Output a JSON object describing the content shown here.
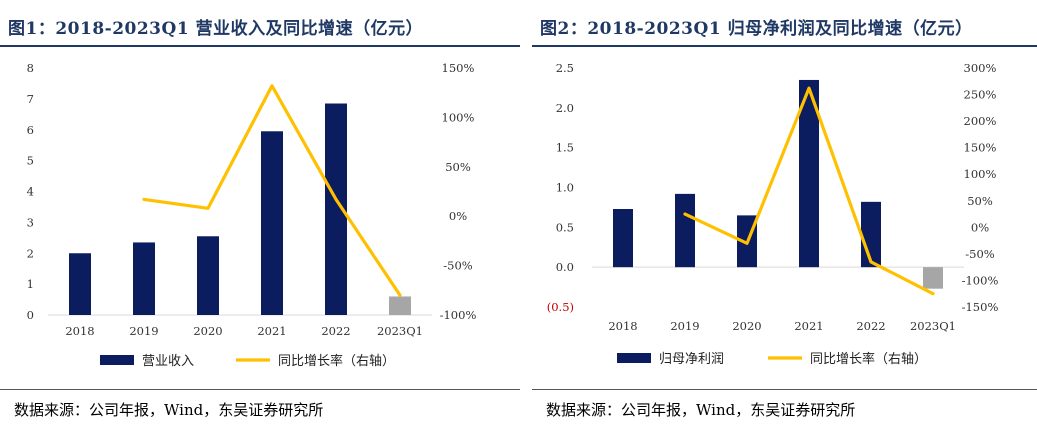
{
  "colors": {
    "bar": "#0b1d5e",
    "bar_estimate": "#a6a6a6",
    "line": "#ffc000",
    "title": "#1f3864",
    "negative_label": "#c00000"
  },
  "figures": [
    {
      "title": "图1：2018-2023Q1 营业收入及同比增速（亿元）",
      "source": "数据来源：公司年报，Wind，东吴证券研究所"
    },
    {
      "title": "图2：2018-2023Q1 归母净利润及同比增速（亿元）",
      "source": "数据来源：公司年报，Wind，东吴证券研究所"
    }
  ],
  "chart_data": [
    {
      "type": "bar",
      "categories": [
        "2018",
        "2019",
        "2020",
        "2021",
        "2022",
        "2023Q1"
      ],
      "series": [
        {
          "name": "营业收入",
          "type": "bar",
          "axis": "left",
          "values": [
            2.0,
            2.35,
            2.55,
            5.95,
            6.85,
            0.6
          ]
        },
        {
          "name": "同比增长率（右轴）",
          "type": "line",
          "axis": "right",
          "values": [
            null,
            0.17,
            0.08,
            1.32,
            0.17,
            -0.8
          ]
        }
      ],
      "left_ticks": [
        "0",
        "1",
        "2",
        "3",
        "4",
        "5",
        "6",
        "7",
        "8"
      ],
      "right_ticks": [
        "-100%",
        "-50%",
        "0%",
        "50%",
        "100%",
        "150%"
      ],
      "ylim_left": [
        0,
        8
      ],
      "ylim_right": [
        -1.0,
        1.5
      ],
      "legend": "bottom",
      "grid": false
    },
    {
      "type": "bar",
      "categories": [
        "2018",
        "2019",
        "2020",
        "2021",
        "2022",
        "2023Q1"
      ],
      "series": [
        {
          "name": "归母净利润",
          "type": "bar",
          "axis": "left",
          "values": [
            0.73,
            0.92,
            0.65,
            2.35,
            0.82,
            -0.27
          ]
        },
        {
          "name": "同比增长率（右轴）",
          "type": "line",
          "axis": "right",
          "values": [
            null,
            0.25,
            -0.3,
            2.62,
            -0.65,
            -1.25
          ]
        }
      ],
      "left_ticks": [
        "(0.5)",
        "0.0",
        "0.5",
        "1.0",
        "1.5",
        "2.0",
        "2.5"
      ],
      "right_ticks": [
        "-150%",
        "-100%",
        "-50%",
        "0%",
        "50%",
        "100%",
        "150%",
        "200%",
        "250%",
        "300%"
      ],
      "ylim_left": [
        -0.5,
        2.5
      ],
      "ylim_right": [
        -1.5,
        3.0
      ],
      "legend": "bottom",
      "grid": false
    }
  ]
}
